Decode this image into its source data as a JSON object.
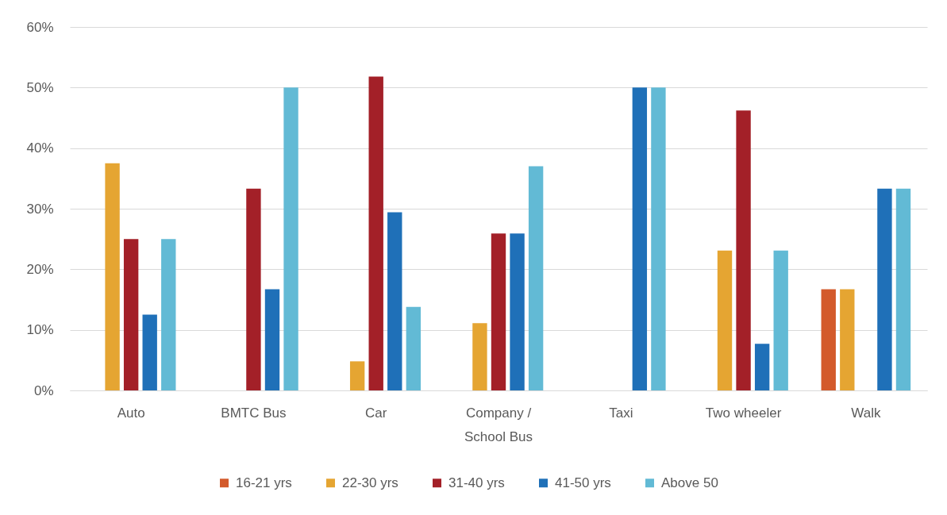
{
  "chart_data": {
    "type": "bar",
    "categories": [
      "Auto",
      "BMTC Bus",
      "Car",
      "Company / School Bus",
      "Taxi",
      "Two wheeler",
      "Walk"
    ],
    "series": [
      {
        "name": "16-21 yrs",
        "color": "#d35a2b",
        "values": [
          null,
          null,
          null,
          null,
          null,
          null,
          16.7
        ]
      },
      {
        "name": "22-30 yrs",
        "color": "#e5a532",
        "values": [
          37.5,
          null,
          4.8,
          11.1,
          null,
          23.1,
          16.7
        ]
      },
      {
        "name": "31-40 yrs",
        "color": "#a32028",
        "values": [
          25,
          33.3,
          51.8,
          25.9,
          null,
          46.2,
          null
        ]
      },
      {
        "name": "41-50 yrs",
        "color": "#1f70b8",
        "values": [
          12.5,
          16.7,
          29.4,
          25.9,
          50,
          7.7,
          33.3
        ]
      },
      {
        "name": "Above 50",
        "color": "#62bad5",
        "values": [
          25,
          50,
          13.8,
          37,
          50,
          23.1,
          33.3
        ]
      }
    ],
    "ylim": [
      0,
      60
    ],
    "yticks": [
      {
        "value": 0,
        "label": "0%"
      },
      {
        "value": 10,
        "label": "10%"
      },
      {
        "value": 20,
        "label": "20%"
      },
      {
        "value": 30,
        "label": "30%"
      },
      {
        "value": 40,
        "label": "40%"
      },
      {
        "value": 50,
        "label": "50%"
      },
      {
        "value": 60,
        "label": "60%"
      }
    ],
    "grid": "y",
    "legend": "bottom"
  }
}
